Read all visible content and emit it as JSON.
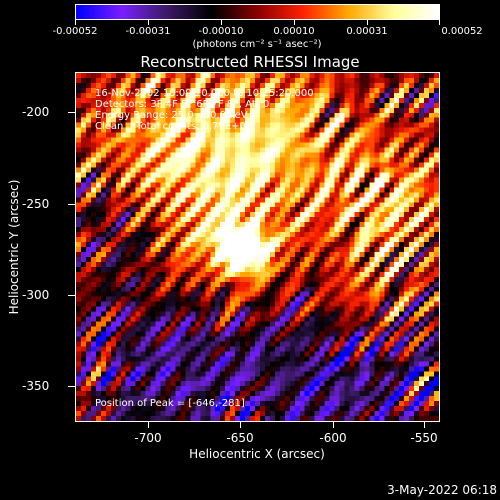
{
  "colorbar": {
    "tick_labels": [
      "-0.00052",
      "-0.00031",
      "-0.00010",
      "0.00010",
      "0.00031",
      "0.00052"
    ],
    "units": "(photons cm⁻² s⁻¹ asec⁻²)",
    "colors": [
      "#0000ff",
      "#7a1fff",
      "#3d1a66",
      "#000000",
      "#8a0000",
      "#ff2200",
      "#ffa800",
      "#ffff99",
      "#ffffff"
    ]
  },
  "title": "Reconstructed RHESSI Image",
  "info_lines": [
    "16-Nov-2002 10:09:20.000 to 10:15:20.000",
    "Detectors: 3F 4F 5F 6F 7F 8F, Att 0",
    "Energy Range: 25.0 - 50.0 keV",
    "Clean    Total counts: 6.79E+03"
  ],
  "peak_text": "Position of Peak = [-646,-281]",
  "x_axis": {
    "label": "Heliocentric X (arcsec)",
    "ticks": [
      "-700",
      "-650",
      "-600",
      "-550"
    ],
    "range": [
      -740,
      -545
    ]
  },
  "y_axis": {
    "label": "Heliocentric Y (arcsec)",
    "ticks": [
      "-200",
      "-250",
      "-300",
      "-350"
    ],
    "range": [
      -372,
      -180
    ]
  },
  "timestamp": "3-May-2022 06:18"
}
